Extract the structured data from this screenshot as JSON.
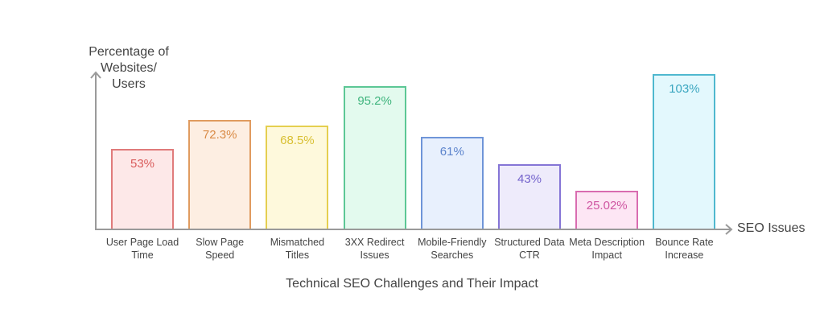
{
  "chart_data": {
    "type": "bar",
    "title": "Technical SEO Challenges and Their Impact",
    "xlabel": "SEO Issues",
    "ylabel": "Percentage of Websites/ Users",
    "categories": [
      "User Page Load Time",
      "Slow Page Speed",
      "Mismatched Titles",
      "3XX Redirect Issues",
      "Mobile-Friendly Searches",
      "Structured Data CTR",
      "Meta Description Impact",
      "Bounce Rate Increase"
    ],
    "values": [
      53,
      72.3,
      68.5,
      95.2,
      61,
      43,
      25.02,
      103
    ],
    "value_labels": [
      "53%",
      "72.3%",
      "68.5%",
      "95.2%",
      "61%",
      "43%",
      "25.02%",
      "103%"
    ],
    "colors": {
      "border": [
        "#e07b7b",
        "#e09b5f",
        "#e5cf4f",
        "#5cc795",
        "#6f95d8",
        "#8575d6",
        "#d96cb0",
        "#4fb8cf"
      ],
      "fill": [
        "#fde8e8",
        "#fdeee2",
        "#fef9dc",
        "#e3faee",
        "#e8f0fd",
        "#eeebfb",
        "#fde6f4",
        "#e3f8fd"
      ],
      "text": [
        "#d95c5c",
        "#d98a45",
        "#d9c034",
        "#3fb47d",
        "#5b83cc",
        "#7463cc",
        "#cf56a2",
        "#3aa6c0"
      ]
    },
    "grid": false,
    "legend": null
  },
  "labels": {
    "ylabel_line1": "Percentage of Websites/",
    "ylabel_line2": "Users",
    "xlabel": "SEO Issues",
    "title": "Technical SEO Challenges and Their Impact",
    "cats": [
      [
        "User Page Load",
        "Time"
      ],
      [
        "Slow Page",
        "Speed"
      ],
      [
        "Mismatched",
        "Titles"
      ],
      [
        "3XX Redirect",
        "Issues"
      ],
      [
        "Mobile-Friendly",
        "Searches"
      ],
      [
        "Structured Data",
        "CTR"
      ],
      [
        "Meta Description",
        "Impact"
      ],
      [
        "Bounce Rate",
        "Increase"
      ]
    ]
  }
}
